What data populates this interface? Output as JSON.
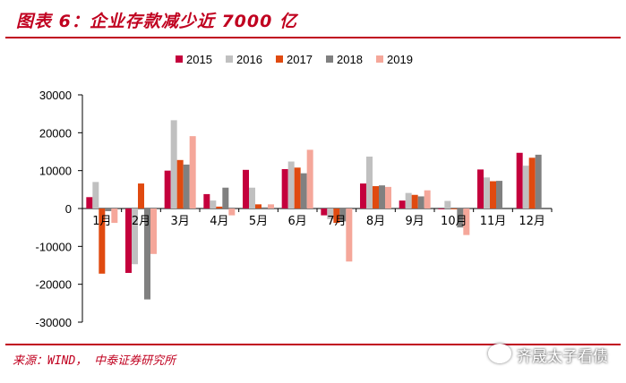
{
  "title": "图表 6：企业存款减少近 7000 亿",
  "source": "来源：WIND， 中泰证券研究所",
  "watermark": "齐晟太子看债",
  "chart_data": {
    "type": "bar",
    "categories": [
      "1月",
      "2月",
      "3月",
      "4月",
      "5月",
      "6月",
      "7月",
      "8月",
      "9月",
      "10月",
      "11月",
      "12月"
    ],
    "series": [
      {
        "name": "2015",
        "color": "#c4003c",
        "values": [
          3000,
          -17000,
          10000,
          3800,
          10200,
          10400,
          -1800,
          6600,
          2100,
          -200,
          10300,
          14700
        ]
      },
      {
        "name": "2016",
        "color": "#c0c0c0",
        "values": [
          7000,
          -14700,
          23300,
          2100,
          5500,
          12400,
          -2800,
          13700,
          4100,
          2000,
          8200,
          11300
        ]
      },
      {
        "name": "2017",
        "color": "#e04a10",
        "values": [
          -17200,
          6600,
          12800,
          500,
          1100,
          10800,
          -3800,
          5900,
          3600,
          -200,
          7200,
          13400
        ]
      },
      {
        "name": "2018",
        "color": "#808080",
        "values": [
          -700,
          -24000,
          11600,
          5500,
          300,
          9300,
          -3400,
          6100,
          3200,
          -5000,
          7300,
          14200
        ]
      },
      {
        "name": "2019",
        "color": "#f5a79a",
        "values": [
          -3800,
          -12000,
          19100,
          -1800,
          1100,
          15500,
          -14000,
          5700,
          4800,
          -7000,
          null,
          null
        ]
      }
    ],
    "ylim": [
      -30000,
      30000
    ],
    "yticks": [
      -30000,
      -20000,
      -10000,
      0,
      10000,
      20000,
      30000
    ],
    "legend_position": "top",
    "grid": false
  }
}
